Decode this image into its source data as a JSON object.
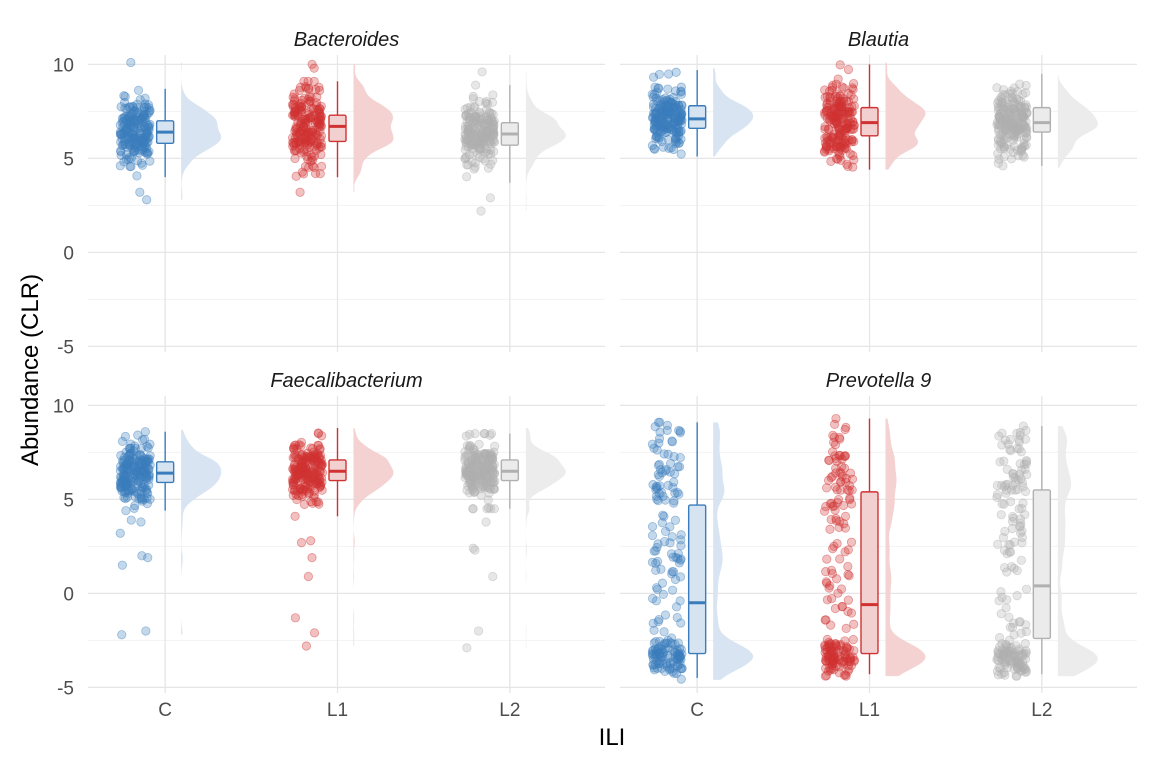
{
  "chart_data": {
    "type": "raincloud",
    "xlabel": "ILI",
    "ylabel": "Abundance (CLR)",
    "categories": [
      "C",
      "L1",
      "L2"
    ],
    "group_colors": {
      "C": "#3a7dbd",
      "L1": "#d03232",
      "L2": "#b0b0b0"
    },
    "box_fill": {
      "C": "#d6e3f0",
      "L1": "#f3d0d0",
      "L2": "#ebebeb"
    },
    "ylim": [
      -5.3,
      10.5
    ],
    "y_ticks": [
      -5,
      0,
      5,
      10
    ],
    "grid": true,
    "legend": "none",
    "facets": [
      {
        "title": "Bacteroides",
        "groups": [
          {
            "name": "C",
            "box": {
              "q1": 5.8,
              "median": 6.4,
              "q3": 7.0,
              "min": 4.0,
              "max": 8.7
            },
            "points_range": [
              2.8,
              10.1
            ],
            "outliers": [
              2.8,
              3.2,
              10.1
            ]
          },
          {
            "name": "L1",
            "box": {
              "q1": 5.9,
              "median": 6.7,
              "q3": 7.3,
              "min": 4.0,
              "max": 9.1
            },
            "points_range": [
              3.2,
              10.0
            ],
            "outliers": [
              3.2,
              9.8,
              10.0
            ]
          },
          {
            "name": "L2",
            "box": {
              "q1": 5.7,
              "median": 6.3,
              "q3": 6.9,
              "min": 3.7,
              "max": 8.9
            },
            "points_range": [
              2.2,
              9.6
            ],
            "outliers": [
              2.2,
              2.9,
              9.6
            ]
          }
        ]
      },
      {
        "title": "Blautia",
        "groups": [
          {
            "name": "C",
            "box": {
              "q1": 6.6,
              "median": 7.1,
              "q3": 7.8,
              "min": 5.1,
              "max": 9.7
            },
            "points_range": [
              5.1,
              9.8
            ],
            "outliers": []
          },
          {
            "name": "L1",
            "box": {
              "q1": 6.2,
              "median": 6.9,
              "q3": 7.7,
              "min": 4.4,
              "max": 10.0
            },
            "points_range": [
              4.4,
              10.1
            ],
            "outliers": []
          },
          {
            "name": "L2",
            "box": {
              "q1": 6.4,
              "median": 6.9,
              "q3": 7.7,
              "min": 4.6,
              "max": 9.5
            },
            "points_range": [
              4.5,
              9.5
            ],
            "outliers": []
          }
        ]
      },
      {
        "title": "Faecalibacterium",
        "groups": [
          {
            "name": "C",
            "box": {
              "q1": 5.9,
              "median": 6.4,
              "q3": 7.0,
              "min": 4.4,
              "max": 8.6
            },
            "points_range": [
              -2.2,
              8.7
            ],
            "outliers": [
              -2.2,
              -2.0,
              1.5,
              1.9,
              2.0,
              3.2,
              3.8,
              3.9
            ]
          },
          {
            "name": "L1",
            "box": {
              "q1": 6.0,
              "median": 6.5,
              "q3": 7.1,
              "min": 4.1,
              "max": 8.8
            },
            "points_range": [
              -2.8,
              8.8
            ],
            "outliers": [
              -2.8,
              -2.1,
              -1.3,
              0.9,
              1.9,
              2.7,
              2.8
            ]
          },
          {
            "name": "L2",
            "box": {
              "q1": 6.0,
              "median": 6.5,
              "q3": 7.1,
              "min": 4.5,
              "max": 8.5
            },
            "points_range": [
              -2.9,
              8.8
            ],
            "outliers": [
              -2.9,
              -2.0,
              0.9,
              2.3,
              2.4,
              3.8
            ]
          }
        ]
      },
      {
        "title": "Prevotella 9",
        "groups": [
          {
            "name": "C",
            "box": {
              "q1": -3.2,
              "median": -0.5,
              "q3": 4.7,
              "min": -4.5,
              "max": 9.1
            },
            "points_range": [
              -4.6,
              9.1
            ],
            "outliers": []
          },
          {
            "name": "L1",
            "box": {
              "q1": -3.2,
              "median": -0.6,
              "q3": 5.4,
              "min": -4.3,
              "max": 9.3
            },
            "points_range": [
              -4.4,
              9.3
            ],
            "outliers": []
          },
          {
            "name": "L2",
            "box": {
              "q1": -2.4,
              "median": 0.4,
              "q3": 5.5,
              "min": -4.3,
              "max": 8.9
            },
            "points_range": [
              -4.4,
              8.9
            ],
            "outliers": []
          }
        ]
      }
    ]
  }
}
